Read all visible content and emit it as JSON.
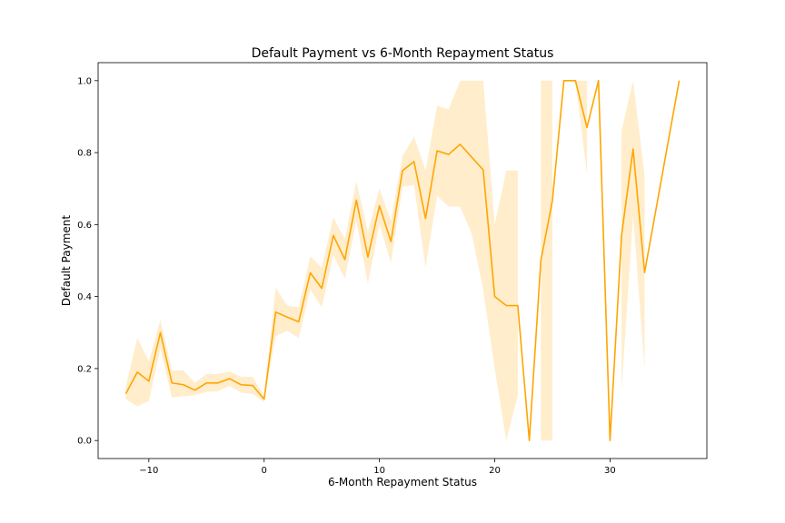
{
  "chart_data": {
    "type": "line",
    "title": "Default Payment vs 6-Month Repayment Status",
    "xlabel": "6-Month Repayment Status",
    "ylabel": "Default Payment",
    "xlim": [
      -14.4,
      38.4
    ],
    "ylim": [
      -0.05,
      1.05
    ],
    "xticks": [
      -10,
      0,
      10,
      20,
      30
    ],
    "xtick_labels": [
      "−10",
      "0",
      "10",
      "20",
      "30"
    ],
    "yticks": [
      0.0,
      0.2,
      0.4,
      0.6,
      0.8,
      1.0
    ],
    "ytick_labels": [
      "0.0",
      "0.2",
      "0.4",
      "0.6",
      "0.8",
      "1.0"
    ],
    "grid": false,
    "legend": "none",
    "colors": {
      "line": "#ffa500",
      "band": "#ffa500",
      "band_opacity": 0.2
    },
    "series": [
      {
        "name": "Default Payment",
        "points": [
          [
            -12,
            0.13
          ],
          [
            -11,
            0.19
          ],
          [
            -10,
            0.165
          ],
          [
            -9,
            0.3
          ],
          [
            -8,
            0.16
          ],
          [
            -7,
            0.155
          ],
          [
            -6,
            0.14
          ],
          [
            -5,
            0.16
          ],
          [
            -4,
            0.16
          ],
          [
            -3,
            0.172
          ],
          [
            -2,
            0.155
          ],
          [
            -1,
            0.153
          ],
          [
            0,
            0.115
          ],
          [
            1,
            0.357
          ],
          [
            2,
            0.343
          ],
          [
            3,
            0.33
          ],
          [
            4,
            0.466
          ],
          [
            5,
            0.423
          ],
          [
            6,
            0.57
          ],
          [
            7,
            0.503
          ],
          [
            8,
            0.668
          ],
          [
            9,
            0.51
          ],
          [
            10,
            0.652
          ],
          [
            11,
            0.553
          ],
          [
            12,
            0.75
          ],
          [
            13,
            0.775
          ],
          [
            14,
            0.617
          ],
          [
            15,
            0.805
          ],
          [
            16,
            0.795
          ],
          [
            17,
            0.823
          ],
          [
            19,
            0.752
          ],
          [
            20,
            0.4
          ],
          [
            21,
            0.375
          ],
          [
            22,
            0.375
          ],
          [
            23,
            0.0
          ],
          [
            24,
            0.5
          ],
          [
            25,
            0.666
          ],
          [
            26,
            1.0
          ],
          [
            27,
            1.0
          ],
          [
            28,
            0.87
          ],
          [
            29,
            1.0
          ],
          [
            30,
            0.0
          ],
          [
            31,
            0.57
          ],
          [
            32,
            0.81
          ],
          [
            33,
            0.467
          ],
          [
            36,
            1.0
          ]
        ],
        "ci_segments": [
          [
            [
              -12,
              0.115,
              0.15
            ],
            [
              -11,
              0.095,
              0.285
            ],
            [
              -10,
              0.11,
              0.22
            ],
            [
              -9,
              0.255,
              0.335
            ],
            [
              -8,
              0.12,
              0.195
            ],
            [
              -7,
              0.123,
              0.195
            ],
            [
              -6,
              0.126,
              0.16
            ],
            [
              -5,
              0.135,
              0.185
            ],
            [
              -4,
              0.137,
              0.185
            ],
            [
              -3,
              0.152,
              0.192
            ],
            [
              -2,
              0.133,
              0.177
            ],
            [
              -1,
              0.13,
              0.177
            ],
            [
              0,
              0.107,
              0.123
            ],
            [
              1,
              0.29,
              0.425
            ],
            [
              2,
              0.305,
              0.375
            ],
            [
              3,
              0.285,
              0.37
            ],
            [
              4,
              0.42,
              0.512
            ],
            [
              5,
              0.37,
              0.48
            ],
            [
              6,
              0.515,
              0.62
            ],
            [
              7,
              0.45,
              0.56
            ],
            [
              8,
              0.61,
              0.72
            ],
            [
              9,
              0.435,
              0.58
            ],
            [
              10,
              0.6,
              0.7
            ],
            [
              11,
              0.495,
              0.61
            ],
            [
              12,
              0.705,
              0.79
            ],
            [
              13,
              0.71,
              0.845
            ],
            [
              14,
              0.48,
              0.75
            ],
            [
              15,
              0.68,
              0.93
            ],
            [
              16,
              0.65,
              0.92
            ],
            [
              17,
              0.65,
              1.0
            ],
            [
              18,
              0.575,
              1.0
            ],
            [
              19,
              0.42,
              1.0
            ],
            [
              20,
              0.2,
              0.6
            ],
            [
              21,
              0.0,
              0.75
            ],
            [
              22,
              0.125,
              0.75
            ]
          ],
          [
            [
              24,
              0.0,
              1.0
            ],
            [
              25,
              0.0,
              1.0
            ]
          ],
          [
            [
              27,
              1.0,
              1.0
            ],
            [
              28,
              0.74,
              1.0
            ]
          ],
          [
            [
              31,
              0.14,
              0.86
            ],
            [
              32,
              0.625,
              1.0
            ],
            [
              33,
              0.2,
              0.735
            ]
          ]
        ]
      }
    ]
  }
}
